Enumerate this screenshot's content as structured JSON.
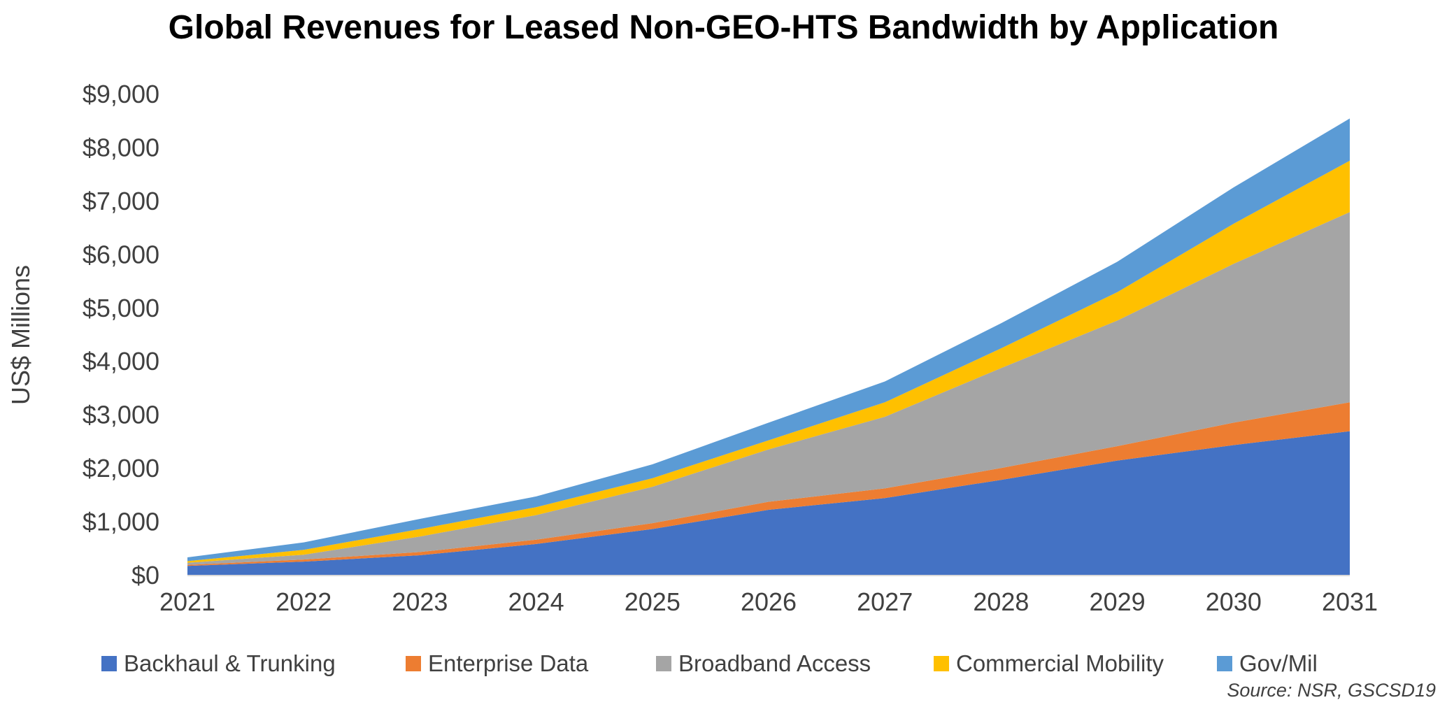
{
  "chart_data": {
    "type": "area",
    "title": "Global Revenues for Leased Non-GEO-HTS Bandwidth by Application",
    "ylabel": "US$ Millions",
    "xlabel": "",
    "ylim": [
      0,
      9000
    ],
    "stacked": true,
    "grid": false,
    "legend_position": "bottom",
    "y_tick_labels": [
      "$0",
      "$1,000",
      "$2,000",
      "$3,000",
      "$4,000",
      "$5,000",
      "$6,000",
      "$7,000",
      "$8,000",
      "$9,000"
    ],
    "y_ticks": [
      0,
      1000,
      2000,
      3000,
      4000,
      5000,
      6000,
      7000,
      8000,
      9000
    ],
    "categories": [
      "2021",
      "2022",
      "2023",
      "2024",
      "2025",
      "2026",
      "2027",
      "2028",
      "2029",
      "2030",
      "2031"
    ],
    "series": [
      {
        "name": "Backhaul & Trunking",
        "color": "#4472C4",
        "values": [
          180,
          260,
          380,
          590,
          870,
          1230,
          1450,
          1790,
          2150,
          2440,
          2700
        ]
      },
      {
        "name": "Enterprise Data",
        "color": "#ED7D31",
        "values": [
          20,
          40,
          60,
          80,
          110,
          150,
          180,
          220,
          270,
          420,
          540
        ]
      },
      {
        "name": "Broadband Access",
        "color": "#A5A5A5",
        "values": [
          40,
          90,
          290,
          460,
          680,
          980,
          1340,
          1870,
          2350,
          2970,
          3560
        ]
      },
      {
        "name": "Commercial Mobility",
        "color": "#FFC000",
        "values": [
          30,
          90,
          140,
          150,
          160,
          170,
          270,
          370,
          530,
          750,
          960
        ]
      },
      {
        "name": "Gov/Mil",
        "color": "#5B9BD5",
        "values": [
          70,
          140,
          190,
          200,
          260,
          330,
          390,
          470,
          570,
          680,
          790
        ]
      }
    ],
    "source": "Source: NSR, GSCSD19"
  }
}
